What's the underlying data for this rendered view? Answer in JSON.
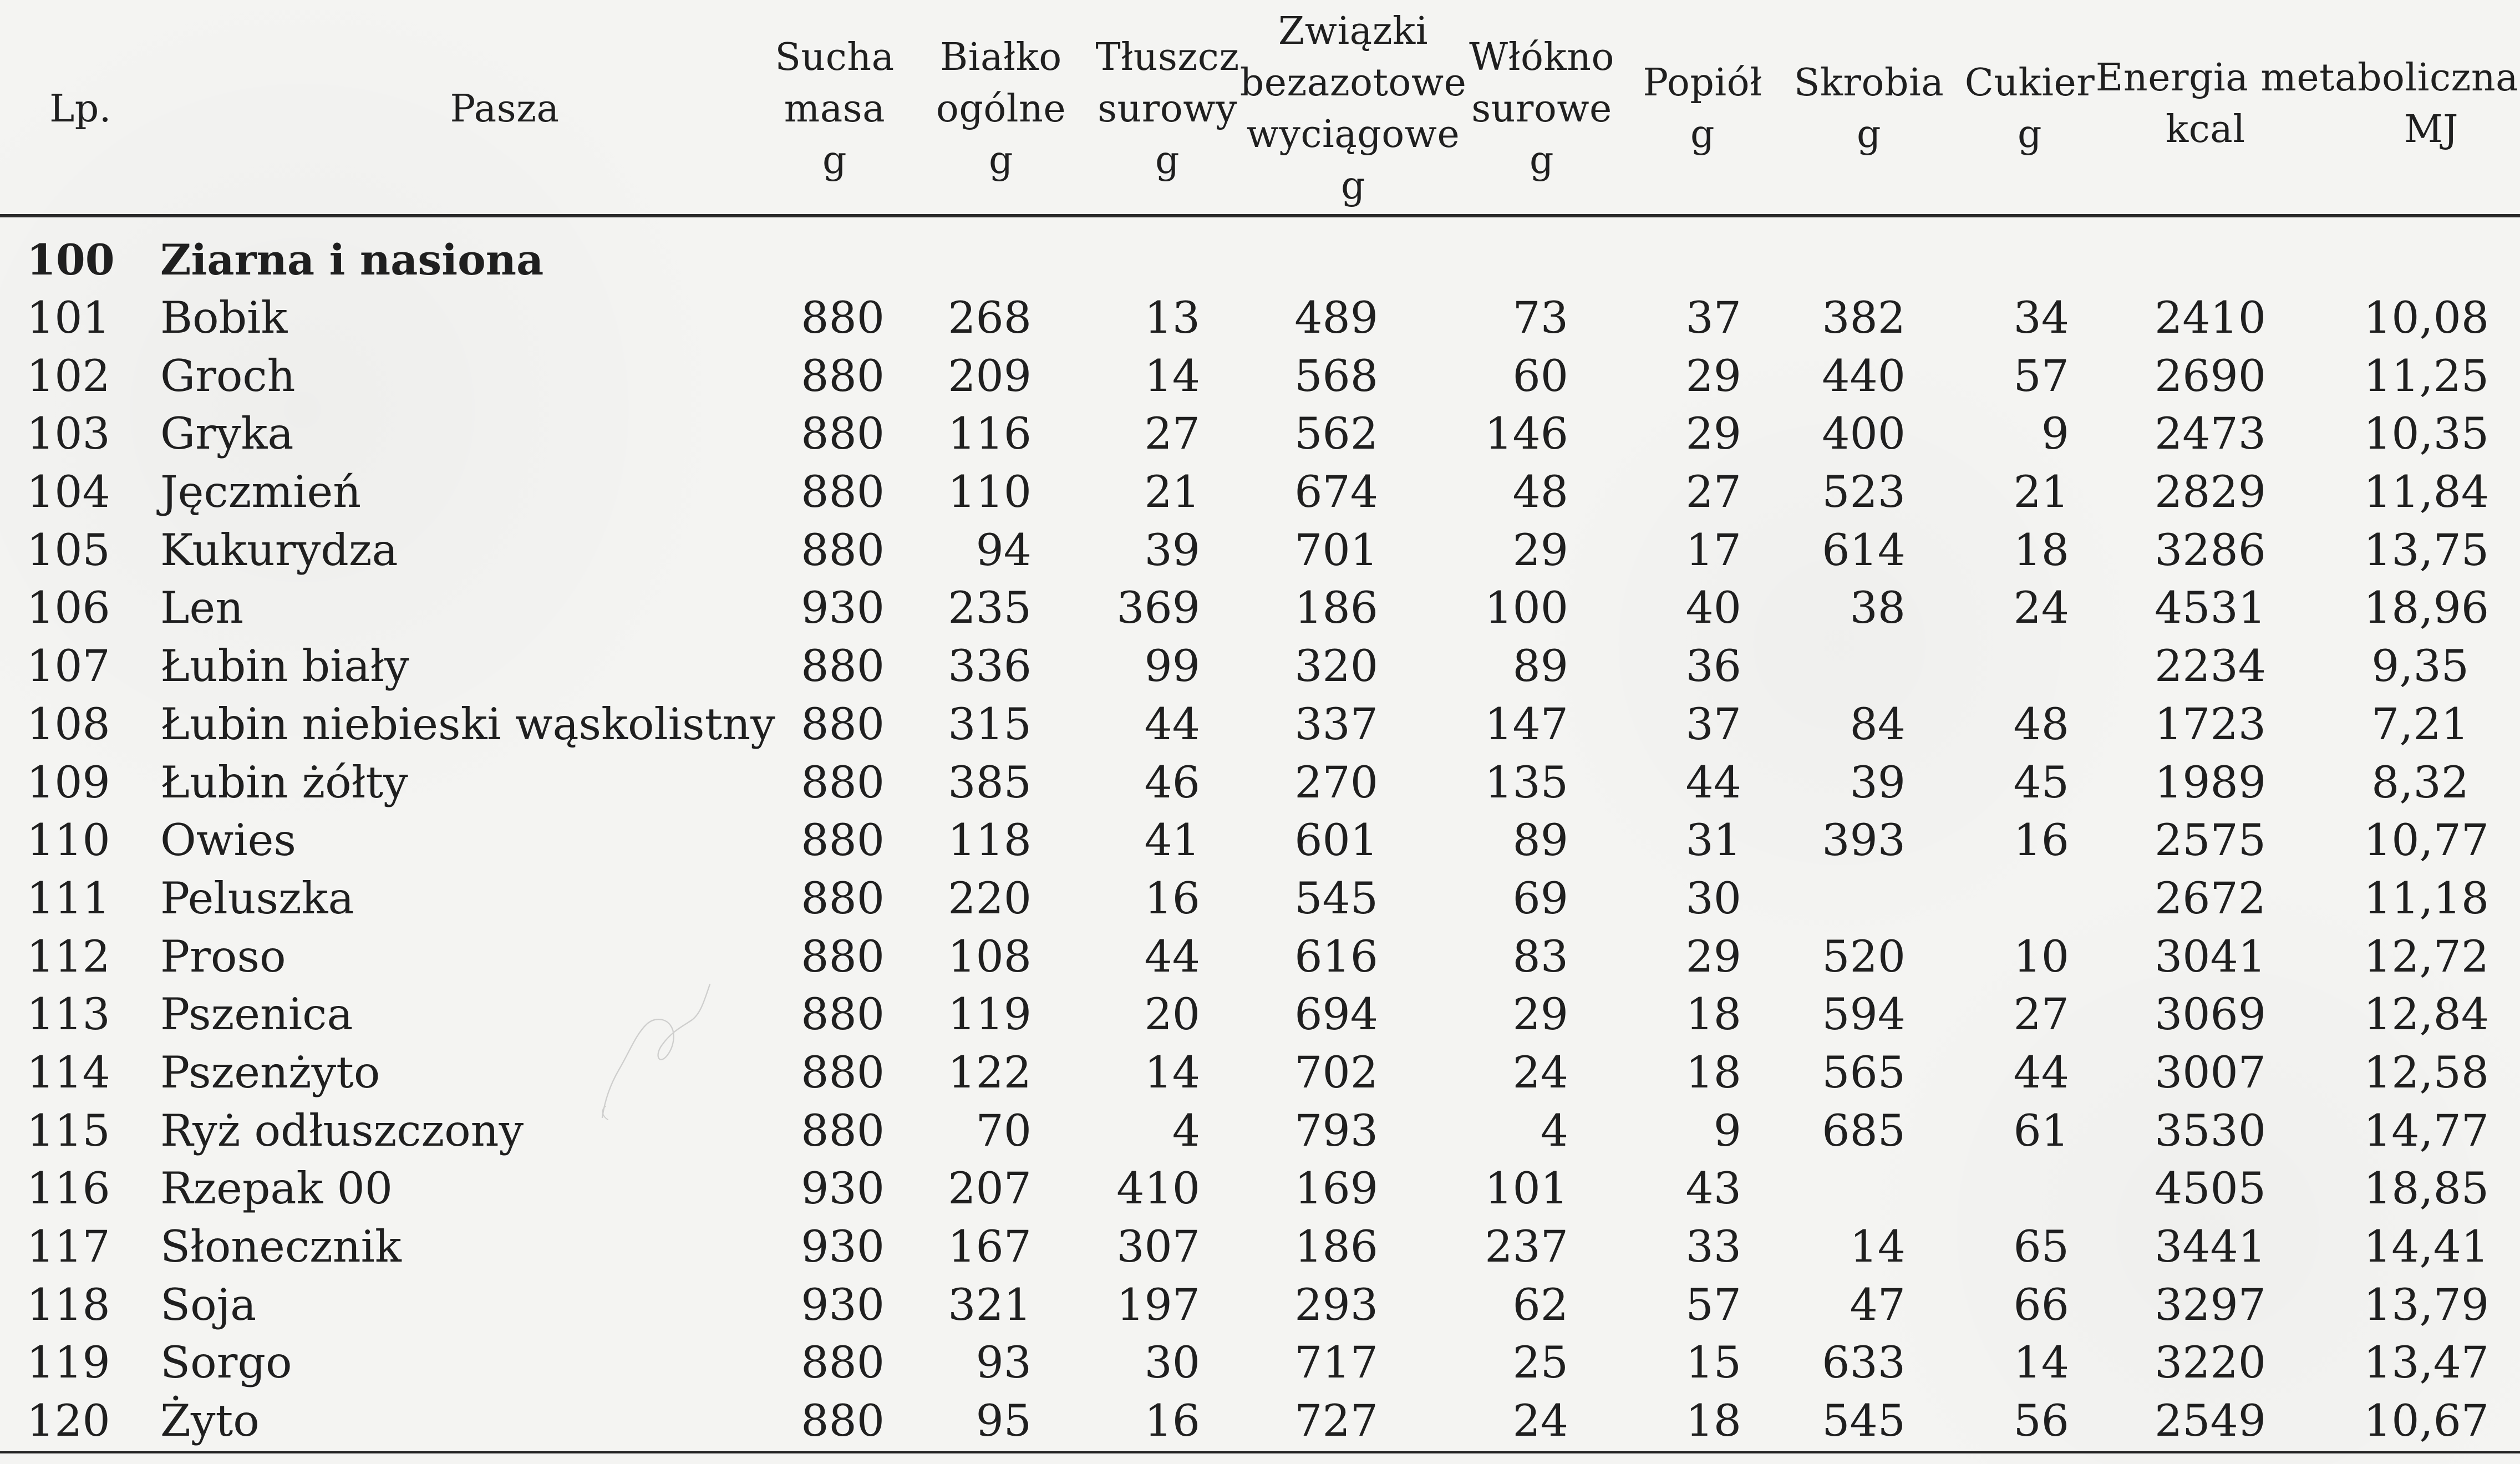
{
  "headers": {
    "lp": "Lp.",
    "pasza": "Pasza",
    "sucha": [
      "Sucha",
      "masa",
      "g"
    ],
    "bialko": [
      "Białko",
      "ogólne",
      "g"
    ],
    "tluszcz": [
      "Tłuszcz",
      "surowy",
      "g"
    ],
    "zwiazki": [
      "Związki",
      "bezazotowe",
      "wyciągowe",
      "g"
    ],
    "wlokno": [
      "Włókno",
      "surowe",
      "g"
    ],
    "popiol": [
      "Popiół",
      "g"
    ],
    "skrobia": [
      "Skrobia",
      "g"
    ],
    "cukier": [
      "Cukier",
      "g"
    ],
    "energia_title": "Energia metaboliczna",
    "kcal": "kcal",
    "mj": "MJ"
  },
  "section": {
    "lp": "100",
    "label": "Ziarna i nasiona"
  },
  "rows": [
    {
      "lp": "101",
      "name": "Bobik",
      "sucha": "880",
      "bialko": "268",
      "tluszcz": "13",
      "zwiazki": "489",
      "wlokno": "73",
      "popiol": "37",
      "skrobia": "382",
      "cukier": "34",
      "kcal": "2410",
      "mj": "10,08"
    },
    {
      "lp": "102",
      "name": "Groch",
      "sucha": "880",
      "bialko": "209",
      "tluszcz": "14",
      "zwiazki": "568",
      "wlokno": "60",
      "popiol": "29",
      "skrobia": "440",
      "cukier": "57",
      "kcal": "2690",
      "mj": "11,25"
    },
    {
      "lp": "103",
      "name": "Gryka",
      "sucha": "880",
      "bialko": "116",
      "tluszcz": "27",
      "zwiazki": "562",
      "wlokno": "146",
      "popiol": "29",
      "skrobia": "400",
      "cukier": "9",
      "kcal": "2473",
      "mj": "10,35"
    },
    {
      "lp": "104",
      "name": "Jęczmień",
      "sucha": "880",
      "bialko": "110",
      "tluszcz": "21",
      "zwiazki": "674",
      "wlokno": "48",
      "popiol": "27",
      "skrobia": "523",
      "cukier": "21",
      "kcal": "2829",
      "mj": "11,84"
    },
    {
      "lp": "105",
      "name": "Kukurydza",
      "sucha": "880",
      "bialko": "94",
      "tluszcz": "39",
      "zwiazki": "701",
      "wlokno": "29",
      "popiol": "17",
      "skrobia": "614",
      "cukier": "18",
      "kcal": "3286",
      "mj": "13,75"
    },
    {
      "lp": "106",
      "name": "Len",
      "sucha": "930",
      "bialko": "235",
      "tluszcz": "369",
      "zwiazki": "186",
      "wlokno": "100",
      "popiol": "40",
      "skrobia": "38",
      "cukier": "24",
      "kcal": "4531",
      "mj": "18,96"
    },
    {
      "lp": "107",
      "name": "Łubin biały",
      "sucha": "880",
      "bialko": "336",
      "tluszcz": "99",
      "zwiazki": "320",
      "wlokno": "89",
      "popiol": "36",
      "skrobia": "",
      "cukier": "",
      "kcal": "2234",
      "mj": "9,35"
    },
    {
      "lp": "108",
      "name": "Łubin niebieski wąskolistny",
      "sucha": "880",
      "bialko": "315",
      "tluszcz": "44",
      "zwiazki": "337",
      "wlokno": "147",
      "popiol": "37",
      "skrobia": "84",
      "cukier": "48",
      "kcal": "1723",
      "mj": "7,21"
    },
    {
      "lp": "109",
      "name": "Łubin żółty",
      "sucha": "880",
      "bialko": "385",
      "tluszcz": "46",
      "zwiazki": "270",
      "wlokno": "135",
      "popiol": "44",
      "skrobia": "39",
      "cukier": "45",
      "kcal": "1989",
      "mj": "8,32"
    },
    {
      "lp": "110",
      "name": "Owies",
      "sucha": "880",
      "bialko": "118",
      "tluszcz": "41",
      "zwiazki": "601",
      "wlokno": "89",
      "popiol": "31",
      "skrobia": "393",
      "cukier": "16",
      "kcal": "2575",
      "mj": "10,77"
    },
    {
      "lp": "111",
      "name": "Peluszka",
      "sucha": "880",
      "bialko": "220",
      "tluszcz": "16",
      "zwiazki": "545",
      "wlokno": "69",
      "popiol": "30",
      "skrobia": "",
      "cukier": "",
      "kcal": "2672",
      "mj": "11,18"
    },
    {
      "lp": "112",
      "name": "Proso",
      "sucha": "880",
      "bialko": "108",
      "tluszcz": "44",
      "zwiazki": "616",
      "wlokno": "83",
      "popiol": "29",
      "skrobia": "520",
      "cukier": "10",
      "kcal": "3041",
      "mj": "12,72"
    },
    {
      "lp": "113",
      "name": "Pszenica",
      "sucha": "880",
      "bialko": "119",
      "tluszcz": "20",
      "zwiazki": "694",
      "wlokno": "29",
      "popiol": "18",
      "skrobia": "594",
      "cukier": "27",
      "kcal": "3069",
      "mj": "12,84"
    },
    {
      "lp": "114",
      "name": "Pszenżyto",
      "sucha": "880",
      "bialko": "122",
      "tluszcz": "14",
      "zwiazki": "702",
      "wlokno": "24",
      "popiol": "18",
      "skrobia": "565",
      "cukier": "44",
      "kcal": "3007",
      "mj": "12,58"
    },
    {
      "lp": "115",
      "name": "Ryż odłuszczony",
      "sucha": "880",
      "bialko": "70",
      "tluszcz": "4",
      "zwiazki": "793",
      "wlokno": "4",
      "popiol": "9",
      "skrobia": "685",
      "cukier": "61",
      "kcal": "3530",
      "mj": "14,77"
    },
    {
      "lp": "116",
      "name": "Rzepak 00",
      "sucha": "930",
      "bialko": "207",
      "tluszcz": "410",
      "zwiazki": "169",
      "wlokno": "101",
      "popiol": "43",
      "skrobia": "",
      "cukier": "",
      "kcal": "4505",
      "mj": "18,85"
    },
    {
      "lp": "117",
      "name": "Słonecznik",
      "sucha": "930",
      "bialko": "167",
      "tluszcz": "307",
      "zwiazki": "186",
      "wlokno": "237",
      "popiol": "33",
      "skrobia": "14",
      "cukier": "65",
      "kcal": "3441",
      "mj": "14,41"
    },
    {
      "lp": "118",
      "name": "Soja",
      "sucha": "930",
      "bialko": "321",
      "tluszcz": "197",
      "zwiazki": "293",
      "wlokno": "62",
      "popiol": "57",
      "skrobia": "47",
      "cukier": "66",
      "kcal": "3297",
      "mj": "13,79"
    },
    {
      "lp": "119",
      "name": "Sorgo",
      "sucha": "880",
      "bialko": "93",
      "tluszcz": "30",
      "zwiazki": "717",
      "wlokno": "25",
      "popiol": "15",
      "skrobia": "633",
      "cukier": "14",
      "kcal": "3220",
      "mj": "13,47"
    },
    {
      "lp": "120",
      "name": "Żyto",
      "sucha": "880",
      "bialko": "95",
      "tluszcz": "16",
      "zwiazki": "727",
      "wlokno": "24",
      "popiol": "18",
      "skrobia": "545",
      "cukier": "56",
      "kcal": "2549",
      "mj": "10,67"
    }
  ]
}
